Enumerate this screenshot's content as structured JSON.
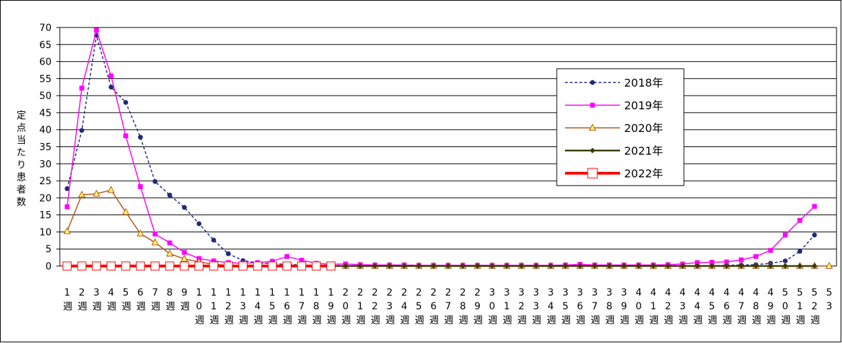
{
  "chart_data": {
    "type": "line",
    "y_label": "定点当たり患者数",
    "categories": [
      "1週",
      "2週",
      "3週",
      "4週",
      "5週",
      "6週",
      "7週",
      "8週",
      "9週",
      "10週",
      "11週",
      "12週",
      "13週",
      "14週",
      "15週",
      "16週",
      "17週",
      "18週",
      "19週",
      "20週",
      "21週",
      "22週",
      "23週",
      "24週",
      "25週",
      "26週",
      "27週",
      "28週",
      "29週",
      "30週",
      "31週",
      "32週",
      "33週",
      "34週",
      "35週",
      "36週",
      "37週",
      "38週",
      "39週",
      "40週",
      "41週",
      "42週",
      "43週",
      "44週",
      "45週",
      "46週",
      "47週",
      "48週",
      "49週",
      "50週",
      "51週",
      "52週",
      "53"
    ],
    "ylim": [
      0,
      70
    ],
    "yticks": [
      0,
      5,
      10,
      15,
      20,
      25,
      30,
      35,
      40,
      45,
      50,
      55,
      60,
      65,
      70
    ],
    "grid": true,
    "series": [
      {
        "name": "2018年",
        "color": "#1f2a7a",
        "dash": true,
        "marker": "circle",
        "values": [
          22.7,
          39.8,
          67.7,
          52.5,
          48,
          37.8,
          24.8,
          20.8,
          17.2,
          12.4,
          7.6,
          3.6,
          1.6,
          0.9,
          0.7,
          0.5,
          0.3,
          0.2,
          0.2,
          0.1,
          0.1,
          0.1,
          0.1,
          0.1,
          0.1,
          0.1,
          0.1,
          0.1,
          0.1,
          0.1,
          0.1,
          0.1,
          0.1,
          0.1,
          0.1,
          0.1,
          0.1,
          0.1,
          0.1,
          0.1,
          0.1,
          0.1,
          0.1,
          0.1,
          0.1,
          0.2,
          0.3,
          0.4,
          0.8,
          1.5,
          4.3,
          9.1,
          null
        ]
      },
      {
        "name": "2019年",
        "color": "#ff00ff",
        "dash": false,
        "marker": "square",
        "values": [
          17.4,
          52.2,
          69.2,
          55.8,
          38.2,
          23.3,
          9.4,
          6.8,
          4,
          2.2,
          1.5,
          1,
          0.8,
          1,
          1.4,
          2.8,
          1.7,
          0.8,
          0.5,
          0.6,
          0.4,
          0.3,
          0.3,
          0.3,
          0.2,
          0.2,
          0.2,
          0.2,
          0.2,
          0.2,
          0.2,
          0.2,
          0.2,
          0.2,
          0.3,
          0.5,
          0.3,
          0.3,
          0.3,
          0.3,
          0.3,
          0.4,
          0.6,
          1,
          1.1,
          1.2,
          1.8,
          2.8,
          4.6,
          9.1,
          13.4,
          17.5,
          null
        ]
      },
      {
        "name": "2020年",
        "color": "#b5541a",
        "dash": false,
        "marker": "triangle",
        "values": [
          10.2,
          20.9,
          21.2,
          22.3,
          15.8,
          9.5,
          6.9,
          3.6,
          2.1,
          1.2,
          0.5,
          0.2,
          0.1,
          0,
          0,
          0,
          0,
          0,
          0,
          0,
          0,
          0,
          0,
          0,
          0,
          0,
          0,
          0,
          0,
          0,
          0,
          0,
          0,
          0,
          0,
          0,
          0,
          0,
          0,
          0,
          0,
          0,
          0,
          0,
          0,
          0,
          0,
          0,
          0,
          0,
          0,
          0,
          0
        ]
      },
      {
        "name": "2021年",
        "color": "#3a3a00",
        "dash": false,
        "marker": "diamond",
        "values": [
          0,
          0,
          0,
          0,
          0,
          0,
          0,
          0,
          0,
          0,
          0,
          0,
          0,
          0,
          0,
          0,
          0,
          0,
          0,
          0,
          0,
          0,
          0,
          0,
          0,
          0,
          0,
          0,
          0,
          0,
          0,
          0,
          0,
          0,
          0,
          0,
          0,
          0,
          0,
          0,
          0,
          0,
          0,
          0,
          0,
          0,
          0,
          0,
          0,
          0,
          0,
          0,
          null
        ]
      },
      {
        "name": "2022年",
        "color": "#ff0000",
        "dash": false,
        "marker": "open-square",
        "values": [
          0,
          0,
          0,
          0,
          0,
          0,
          0,
          0,
          0,
          0,
          0,
          0,
          0,
          0,
          0,
          0,
          0,
          0,
          0,
          null,
          null,
          null,
          null,
          null,
          null,
          null,
          null,
          null,
          null,
          null,
          null,
          null,
          null,
          null,
          null,
          null,
          null,
          null,
          null,
          null,
          null,
          null,
          null,
          null,
          null,
          null,
          null,
          null,
          null,
          null,
          null,
          null,
          null
        ]
      }
    ]
  }
}
